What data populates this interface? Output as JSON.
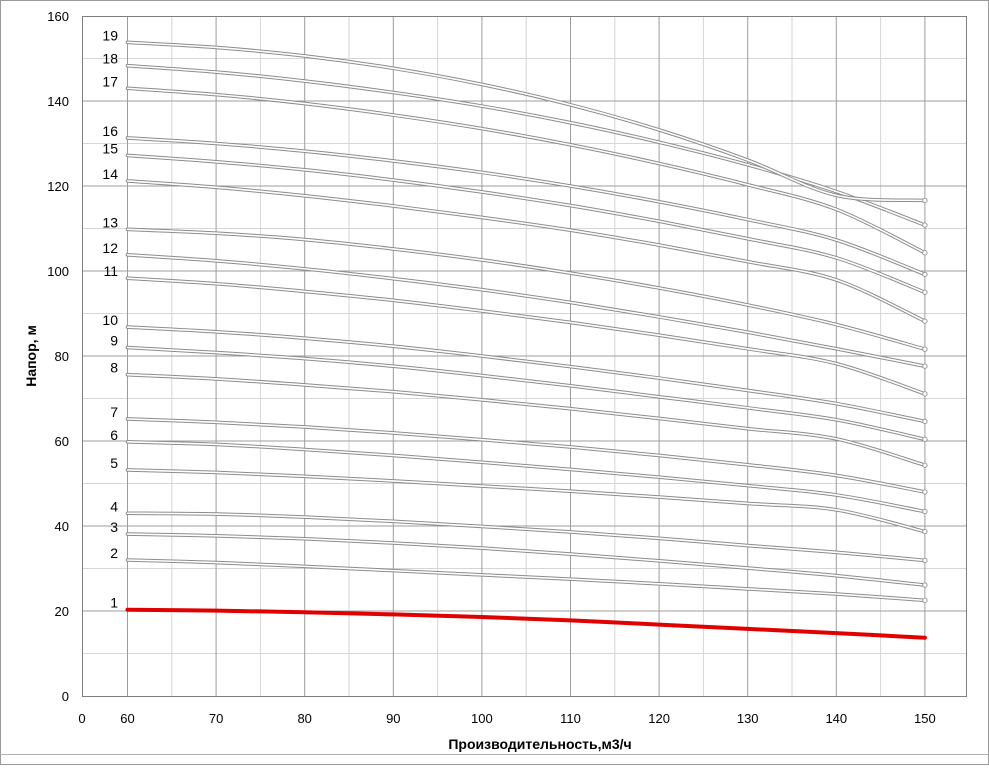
{
  "chart_data": {
    "type": "line",
    "title": "",
    "xlabel": "Производительность,м3/ч",
    "ylabel": "Напор, м",
    "xlim": [
      0,
      150
    ],
    "ylim": [
      0,
      160
    ],
    "x_ticks": [
      0,
      60,
      70,
      80,
      90,
      100,
      110,
      120,
      130,
      140,
      150
    ],
    "y_ticks": [
      0,
      20,
      40,
      60,
      80,
      100,
      120,
      140,
      160
    ],
    "grid": true,
    "legend": "none",
    "x": [
      60,
      70,
      80,
      90,
      100,
      110,
      120,
      130,
      140,
      150
    ],
    "series": [
      {
        "name": "1",
        "color": "#e00000",
        "values": [
          20.3,
          20.1,
          19.7,
          19.2,
          18.6,
          17.8,
          16.8,
          15.8,
          14.8,
          13.7
        ]
      },
      {
        "name": "2",
        "color": "#a0a0a0",
        "values": [
          32.0,
          31.4,
          30.5,
          29.5,
          28.5,
          27.5,
          26.4,
          25.2,
          24.0,
          22.5
        ]
      },
      {
        "name": "3",
        "color": "#a0a0a0",
        "values": [
          38.1,
          37.7,
          37.0,
          36.0,
          34.8,
          33.4,
          31.8,
          30.1,
          28.3,
          26.1
        ]
      },
      {
        "name": "4",
        "color": "#a0a0a0",
        "values": [
          43.0,
          42.8,
          42.1,
          41.1,
          39.9,
          38.6,
          37.1,
          35.4,
          33.8,
          31.9
        ]
      },
      {
        "name": "5",
        "color": "#a0a0a0",
        "values": [
          53.2,
          52.6,
          51.7,
          50.6,
          49.4,
          48.2,
          46.8,
          45.3,
          43.8,
          38.7
        ]
      },
      {
        "name": "6",
        "color": "#a0a0a0",
        "values": [
          59.8,
          59.2,
          58.0,
          56.6,
          55.0,
          53.3,
          51.5,
          49.5,
          47.3,
          43.4
        ]
      },
      {
        "name": "7",
        "color": "#a0a0a0",
        "values": [
          65.2,
          64.4,
          63.3,
          61.9,
          60.3,
          58.6,
          56.6,
          54.4,
          51.9,
          48.0
        ]
      },
      {
        "name": "8",
        "color": "#a0a0a0",
        "values": [
          75.6,
          74.6,
          73.2,
          71.6,
          69.7,
          67.6,
          65.3,
          62.9,
          60.5,
          54.3
        ]
      },
      {
        "name": "9",
        "color": "#a0a0a0",
        "values": [
          82.0,
          80.8,
          79.4,
          77.6,
          75.4,
          73.0,
          70.4,
          67.8,
          65.0,
          60.4
        ]
      },
      {
        "name": "10",
        "color": "#a0a0a0",
        "values": [
          86.8,
          85.7,
          84.2,
          82.3,
          80.0,
          77.5,
          74.8,
          71.9,
          68.8,
          64.6
        ]
      },
      {
        "name": "11",
        "color": "#a0a0a0",
        "values": [
          98.3,
          97.0,
          95.2,
          93.1,
          90.6,
          87.9,
          84.9,
          81.7,
          78.2,
          71.1
        ]
      },
      {
        "name": "12",
        "color": "#a0a0a0",
        "values": [
          103.8,
          102.4,
          100.5,
          98.2,
          95.6,
          92.6,
          89.2,
          85.6,
          81.7,
          77.6
        ]
      },
      {
        "name": "13",
        "color": "#a0a0a0",
        "values": [
          109.8,
          108.9,
          107.4,
          105.2,
          102.6,
          99.5,
          96.0,
          92.0,
          87.4,
          81.6
        ]
      },
      {
        "name": "14",
        "color": "#a0a0a0",
        "values": [
          121.2,
          119.7,
          117.7,
          115.3,
          112.6,
          109.6,
          106.1,
          102.2,
          97.9,
          88.2
        ]
      },
      {
        "name": "15",
        "color": "#a0a0a0",
        "values": [
          127.2,
          125.7,
          123.8,
          121.4,
          118.6,
          115.4,
          111.7,
          107.6,
          103.1,
          95.0
        ]
      },
      {
        "name": "16",
        "color": "#a0a0a0",
        "values": [
          131.3,
          130.0,
          128.2,
          125.9,
          123.2,
          120.0,
          116.3,
          112.1,
          107.3,
          99.2
        ]
      },
      {
        "name": "17",
        "color": "#a0a0a0",
        "values": [
          143.0,
          141.5,
          139.4,
          136.7,
          133.5,
          129.7,
          125.3,
          120.3,
          114.5,
          104.3
        ]
      },
      {
        "name": "18",
        "color": "#a0a0a0",
        "values": [
          148.3,
          146.8,
          144.7,
          142.0,
          138.8,
          134.9,
          130.3,
          125.0,
          118.7,
          110.8
        ]
      },
      {
        "name": "19",
        "color": "#a0a0a0",
        "values": [
          153.8,
          152.6,
          150.6,
          147.7,
          143.9,
          139.1,
          133.2,
          126.1,
          117.8,
          116.6
        ]
      }
    ]
  }
}
